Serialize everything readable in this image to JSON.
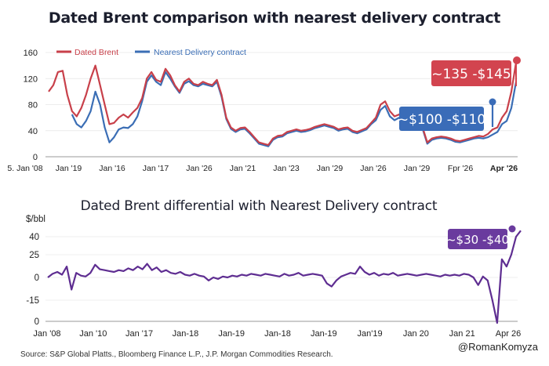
{
  "chart_data": [
    {
      "type": "line",
      "title": "Dated Brent comparison with nearest delivery contract",
      "xlabel": "",
      "ylabel": "",
      "ylim": [
        0,
        160
      ],
      "yticks": [
        0,
        40,
        80,
        120,
        160
      ],
      "xtick_labels": [
        "5. Jan '08",
        "Jan '19",
        "Jan '16",
        "Jan '17",
        "Jan '26",
        "Jan '21",
        "Jan '23",
        "Jan '29",
        "Jan '26",
        "Jan '29",
        "Fpr '26",
        "Apr '26"
      ],
      "grid": true,
      "legend": "top-left",
      "x": [
        0,
        1,
        2,
        3,
        4,
        5,
        6,
        7,
        8,
        9,
        10,
        11,
        12,
        13,
        14,
        15,
        16,
        17,
        18,
        19,
        20,
        21,
        22,
        23,
        24,
        25,
        26,
        27,
        28,
        29,
        30,
        31,
        32,
        33,
        34,
        35,
        36,
        37,
        38,
        39,
        40,
        41,
        42,
        43,
        44,
        45,
        46,
        47,
        48,
        49,
        50,
        51,
        52,
        53,
        54,
        55,
        56,
        57,
        58,
        59,
        60,
        61,
        62,
        63,
        64,
        65,
        66,
        67,
        68,
        69,
        70,
        71,
        72,
        73,
        74,
        75,
        76,
        77,
        78,
        79,
        80,
        81,
        82,
        83,
        84,
        85,
        86,
        87,
        88,
        89,
        90,
        91,
        92,
        93,
        94,
        95,
        96,
        97,
        98,
        99,
        100
      ],
      "series": [
        {
          "name": "Dated Brent",
          "color": "#c8404a",
          "values": [
            100,
            110,
            130,
            132,
            95,
            70,
            62,
            75,
            95,
            120,
            140,
            110,
            80,
            50,
            52,
            60,
            65,
            60,
            68,
            75,
            90,
            120,
            130,
            118,
            115,
            135,
            125,
            110,
            100,
            115,
            120,
            112,
            110,
            115,
            112,
            110,
            118,
            95,
            60,
            45,
            40,
            44,
            45,
            38,
            30,
            22,
            20,
            18,
            28,
            32,
            33,
            38,
            40,
            42,
            40,
            41,
            43,
            46,
            48,
            50,
            48,
            46,
            42,
            44,
            45,
            40,
            38,
            41,
            44,
            52,
            60,
            80,
            85,
            70,
            62,
            65,
            55,
            50,
            52,
            48,
            45,
            22,
            28,
            30,
            31,
            30,
            28,
            25,
            24,
            26,
            28,
            30,
            32,
            31,
            35,
            42,
            45,
            60,
            70,
            100,
            145
          ]
        },
        {
          "name": "Nearest Delivery contract",
          "color": "#3b6eb5",
          "values": [
            null,
            null,
            null,
            null,
            null,
            65,
            50,
            45,
            55,
            70,
            100,
            80,
            45,
            22,
            30,
            42,
            45,
            44,
            50,
            62,
            85,
            115,
            125,
            115,
            110,
            130,
            120,
            108,
            98,
            112,
            116,
            110,
            108,
            112,
            110,
            108,
            115,
            92,
            58,
            43,
            38,
            42,
            43,
            36,
            28,
            20,
            18,
            16,
            26,
            30,
            31,
            36,
            38,
            40,
            38,
            39,
            41,
            44,
            46,
            48,
            46,
            44,
            40,
            42,
            43,
            38,
            36,
            39,
            42,
            50,
            56,
            72,
            78,
            62,
            56,
            60,
            52,
            48,
            50,
            46,
            43,
            20,
            26,
            28,
            29,
            28,
            26,
            23,
            22,
            24,
            26,
            28,
            29,
            28,
            30,
            34,
            38,
            50,
            55,
            75,
            115
          ]
        }
      ],
      "annotations": [
        {
          "text": "~135 -$145",
          "series": "Dated Brent",
          "color": "#d2444f"
        },
        {
          "text": "~$100 -$110",
          "series": "Nearest Delivery contract",
          "color": "#3a6cb8"
        }
      ]
    },
    {
      "type": "line",
      "title": "Dated Brent differential with Nearest Delivery contract",
      "ylabel": "$/bbl",
      "ytick_labels": [
        "40",
        "25",
        "0",
        "-15",
        "0"
      ],
      "xtick_labels": [
        "Jan '08",
        "Jan '10",
        "Jan '17",
        "Jan-18",
        "Jan-19",
        "Jan-18",
        "Jan-19",
        "Jan'19",
        "Jan 20",
        "Jan 21",
        "Apr 26"
      ],
      "grid": true,
      "series": [
        {
          "name": "Differential",
          "color": "#5e2d91",
          "values": [
            0,
            4,
            6,
            3,
            12,
            -8,
            5,
            2,
            1,
            5,
            14,
            9,
            8,
            7,
            6,
            8,
            7,
            10,
            8,
            12,
            9,
            15,
            8,
            11,
            6,
            8,
            5,
            4,
            6,
            3,
            2,
            4,
            2,
            1,
            -2,
            0,
            -1,
            1,
            0,
            2,
            1,
            3,
            2,
            4,
            3,
            2,
            4,
            3,
            2,
            1,
            4,
            2,
            3,
            5,
            2,
            3,
            4,
            3,
            2,
            -4,
            -6,
            -2,
            1,
            3,
            5,
            4,
            12,
            6,
            3,
            5,
            2,
            4,
            3,
            5,
            2,
            3,
            4,
            3,
            2,
            3,
            4,
            3,
            2,
            1,
            3,
            2,
            3,
            2,
            4,
            3,
            0,
            -5,
            1,
            -2,
            -15,
            -30,
            20,
            12,
            25,
            40,
            45
          ]
        }
      ],
      "annotations": [
        {
          "text": "~$30 -$40",
          "color": "#6a3b9e"
        }
      ]
    }
  ],
  "top_chart": {
    "title": "Dated Brent comparison with nearest delivery contract",
    "legend": [
      "Dated Brent",
      "Nearest Delivery contract"
    ]
  },
  "bottom_chart": {
    "title": "Dated Brent differential with Nearest Delivery contract",
    "unit": "$/bbl"
  },
  "footer": {
    "source": "Source: S&P Global Platts., Bloomberg Finance L.P., J.P. Morgan Commodities Research.",
    "handle": "@RomanKomyza"
  }
}
